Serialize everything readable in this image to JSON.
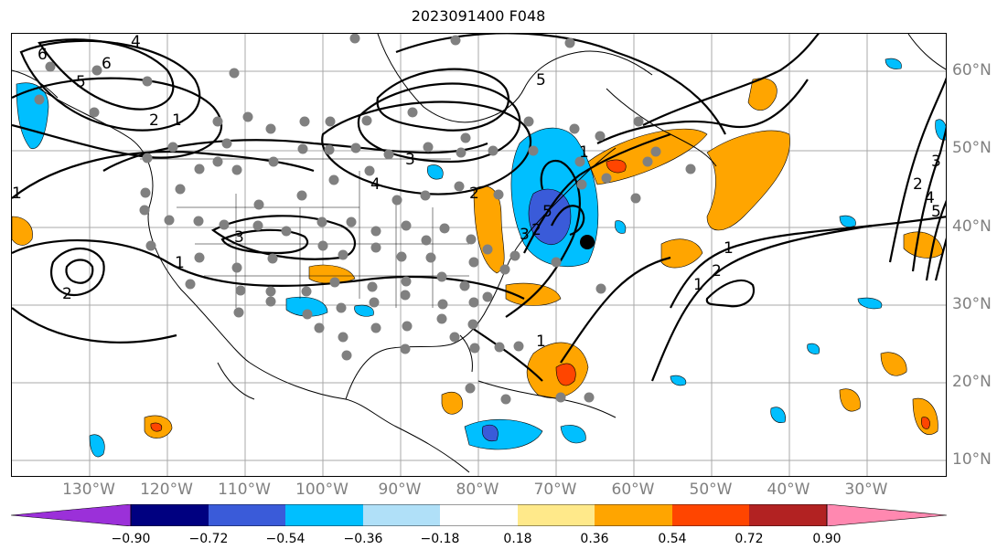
{
  "title": "2023091400 F048",
  "lat_labels": [
    "60°N",
    "50°N",
    "40°N",
    "30°N",
    "20°N",
    "10°N"
  ],
  "lon_labels": [
    "130°W",
    "120°W",
    "110°W",
    "100°W",
    "90°W",
    "80°W",
    "70°W",
    "60°W",
    "50°W",
    "40°W",
    "30°W"
  ],
  "contour_labels": [
    "6",
    "4",
    "6",
    "5",
    "2",
    "1",
    "5",
    "1",
    "4",
    "3",
    "3",
    "2",
    "1",
    "2",
    "1",
    "5",
    "3",
    "2",
    "1",
    "2",
    "1",
    "1",
    "2",
    "4",
    "3",
    "5"
  ],
  "colorbar": {
    "ticks": [
      "−0.90",
      "−0.72",
      "−0.54",
      "−0.36",
      "−0.18",
      "0.18",
      "0.36",
      "0.54",
      "0.72",
      "0.90"
    ],
    "colors": [
      "#9b30d9",
      "#000080",
      "#3a5bd9",
      "#00bfff",
      "#b0e0f8",
      "#ffffff",
      "#ffe98a",
      "#ffa500",
      "#ff4500",
      "#b22222",
      "#ff88b0"
    ]
  },
  "markers": {
    "station_color": "#808080",
    "center_color": "#000000"
  }
}
